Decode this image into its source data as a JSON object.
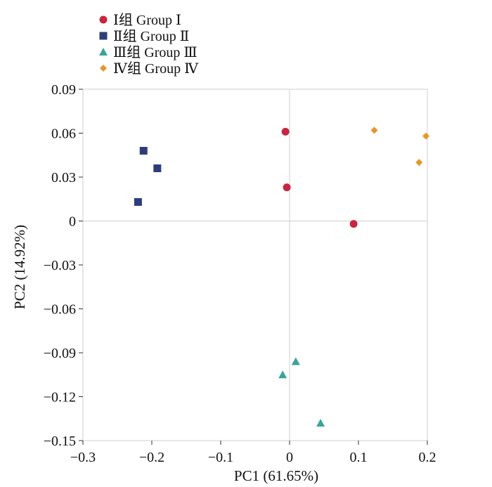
{
  "chart_data": {
    "type": "scatter",
    "title": "",
    "xlabel": "PC1 (61.65%)",
    "ylabel": "PC2 (14.92%)",
    "xlim": [
      -0.3,
      0.2
    ],
    "ylim": [
      -0.15,
      0.09
    ],
    "grid": false,
    "zero_lines": true,
    "legend_position": "top-left",
    "x_ticks": [
      {
        "value": -0.3,
        "label": "−0.3"
      },
      {
        "value": -0.2,
        "label": "−0.2"
      },
      {
        "value": -0.1,
        "label": "−0.1"
      },
      {
        "value": 0,
        "label": "0"
      },
      {
        "value": 0.1,
        "label": "0.1"
      },
      {
        "value": 0.2,
        "label": "0.2"
      }
    ],
    "y_ticks": [
      {
        "value": 0.09,
        "label": "0.09"
      },
      {
        "value": 0.06,
        "label": "0.06"
      },
      {
        "value": 0.03,
        "label": "0.03"
      },
      {
        "value": 0,
        "label": "0"
      },
      {
        "value": -0.03,
        "label": "−0.03"
      },
      {
        "value": -0.06,
        "label": "−0.06"
      },
      {
        "value": -0.09,
        "label": "−0.09"
      },
      {
        "value": -0.12,
        "label": "−0.12"
      },
      {
        "value": -0.15,
        "label": "−0.15"
      }
    ],
    "series": [
      {
        "name": "Ⅰ组 Group Ⅰ",
        "marker": "circle",
        "color": "#c8263f",
        "points": [
          {
            "x": -0.006,
            "y": 0.061
          },
          {
            "x": -0.004,
            "y": 0.023
          },
          {
            "x": 0.093,
            "y": -0.002
          }
        ]
      },
      {
        "name": "Ⅱ组 Group Ⅱ",
        "marker": "square",
        "color": "#2e3d7a",
        "points": [
          {
            "x": -0.212,
            "y": 0.048
          },
          {
            "x": -0.192,
            "y": 0.036
          },
          {
            "x": -0.22,
            "y": 0.013
          }
        ]
      },
      {
        "name": "Ⅲ组 Group Ⅲ",
        "marker": "triangle",
        "color": "#3aa39a",
        "points": [
          {
            "x": -0.01,
            "y": -0.105
          },
          {
            "x": 0.009,
            "y": -0.096
          },
          {
            "x": 0.045,
            "y": -0.138
          }
        ]
      },
      {
        "name": "Ⅳ组 Group Ⅳ",
        "marker": "diamond",
        "color": "#e8962a",
        "points": [
          {
            "x": 0.123,
            "y": 0.062
          },
          {
            "x": 0.198,
            "y": 0.058
          },
          {
            "x": 0.188,
            "y": 0.04
          }
        ]
      }
    ]
  }
}
